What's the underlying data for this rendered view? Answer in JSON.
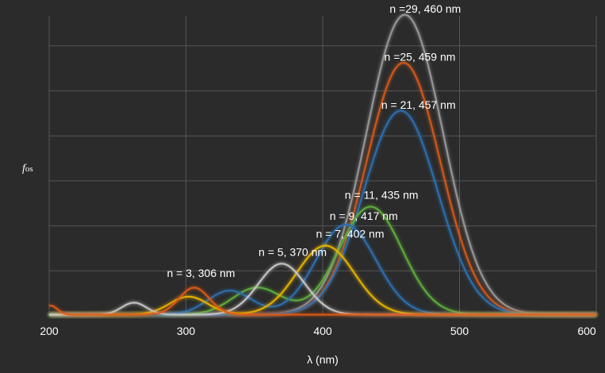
{
  "chart_data": {
    "type": "line",
    "title": "",
    "xlabel": "λ (nm)",
    "ylabel_italic": "f",
    "ylabel_sub": "os",
    "xlim": [
      200,
      600
    ],
    "ylim": [
      0,
      100
    ],
    "x_ticks": [
      {
        "value": 200,
        "label": "200"
      },
      {
        "value": 300,
        "label": "300"
      },
      {
        "value": 400,
        "label": "400"
      },
      {
        "value": 500,
        "label": "500"
      },
      {
        "value": 600,
        "label": "600"
      }
    ],
    "y_grid": [
      15,
      30,
      45,
      60,
      75,
      90
    ],
    "grid": true,
    "legend": "none",
    "series": [
      {
        "color": "#9a9a9a",
        "peaks": [
          {
            "x": 460,
            "y": 100,
            "w": 28
          }
        ]
      },
      {
        "color": "#d45a1c",
        "peaks": [
          {
            "x": 459,
            "y": 84,
            "w": 27
          }
        ]
      },
      {
        "color": "#2e6fb0",
        "peaks": [
          {
            "x": 457,
            "y": 68,
            "w": 27
          }
        ]
      },
      {
        "color": "#5fae3c",
        "peaks": [
          {
            "x": 435,
            "y": 36,
            "w": 23
          },
          {
            "x": 352,
            "y": 9,
            "w": 18
          }
        ]
      },
      {
        "color": "#2e6fb0",
        "peaks": [
          {
            "x": 417,
            "y": 30,
            "w": 22
          },
          {
            "x": 332,
            "y": 8,
            "w": 16
          }
        ]
      },
      {
        "color": "#e8b400",
        "peaks": [
          {
            "x": 402,
            "y": 23,
            "w": 21
          },
          {
            "x": 302,
            "y": 6,
            "w": 14
          }
        ]
      },
      {
        "color": "#c8c8c8",
        "peaks": [
          {
            "x": 370,
            "y": 17,
            "w": 17
          },
          {
            "x": 262,
            "y": 4,
            "w": 9
          }
        ]
      },
      {
        "color": "#e05a16",
        "peaks": [
          {
            "x": 306,
            "y": 9,
            "w": 11
          },
          {
            "x": 201,
            "y": 3,
            "w": 5
          }
        ]
      }
    ],
    "annotations": [
      {
        "text": "n =29, 460 nm",
        "x": 475,
        "y": 101
      },
      {
        "text": "n =25, 459 nm",
        "x": 471,
        "y": 85
      },
      {
        "text": "n = 21, 457 nm",
        "x": 470,
        "y": 69
      },
      {
        "text": "n = 11, 435 nm",
        "x": 443,
        "y": 39
      },
      {
        "text": "n = 9, 417 nm",
        "x": 430,
        "y": 32
      },
      {
        "text": "n = 7, 402 nm",
        "x": 420,
        "y": 26
      },
      {
        "text": "n = 5, 370 nm",
        "x": 378,
        "y": 20
      },
      {
        "text": "n = 3, 306 nm",
        "x": 311,
        "y": 13
      }
    ]
  }
}
